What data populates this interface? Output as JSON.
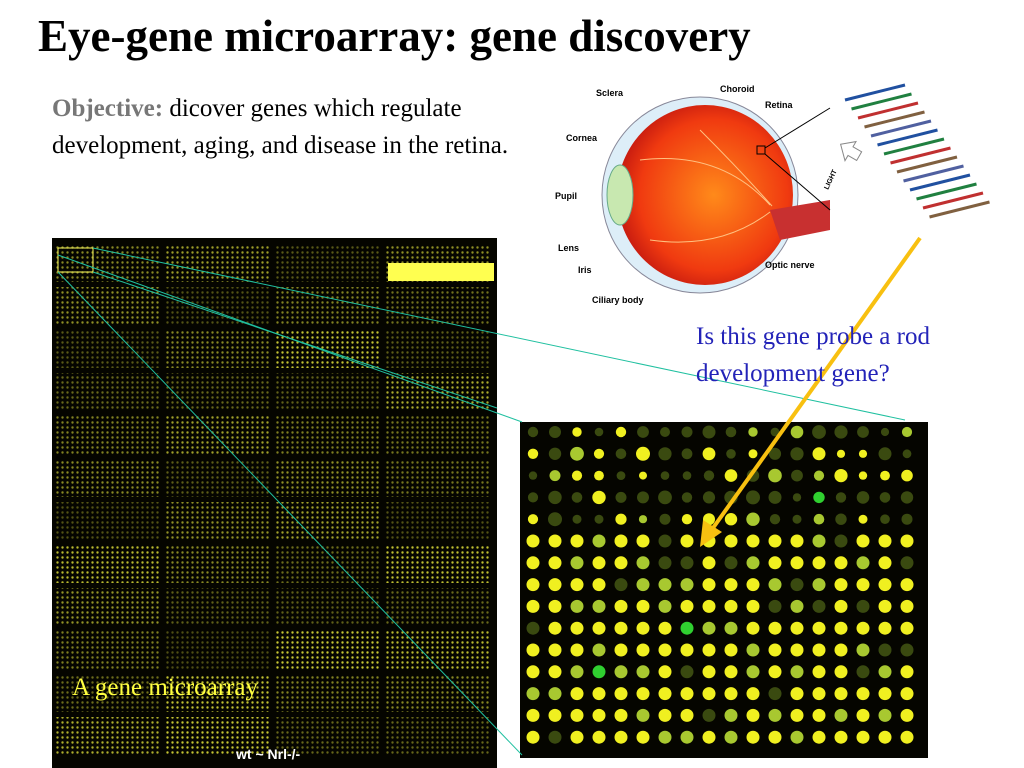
{
  "title": "Eye-gene microarray: gene discovery",
  "objective": {
    "label": "Objective:",
    "text": "dicover genes which regulate development, aging, and disease in the retina."
  },
  "eye_diagram": {
    "labels": {
      "sclera": "Sclera",
      "choroid": "Choroid",
      "retina": "Retina",
      "cornea": "Cornea",
      "pupil": "Pupil",
      "lens": "Lens",
      "iris": "Iris",
      "ciliary": "Ciliary body",
      "optic": "Optic nerve",
      "light": "LIGHT"
    }
  },
  "question": "Is this gene probe  a rod development gene?",
  "microarray": {
    "caption": "A gene microarray",
    "label": "wt ~ Nrl-/-"
  }
}
